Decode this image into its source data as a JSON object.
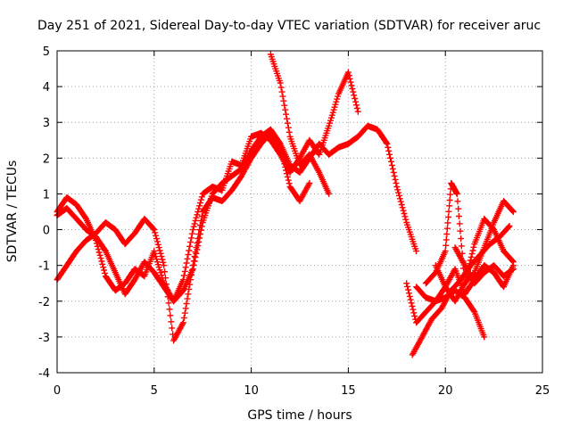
{
  "chart_data": {
    "type": "scatter",
    "title": "Day 251 of 2021, Sidereal Day-to-day VTEC variation (SDTVAR) for receiver aruc",
    "xlabel": "GPS time / hours",
    "ylabel": "SDTVAR / TECUs",
    "xlim": [
      0,
      25
    ],
    "ylim": [
      -4,
      5
    ],
    "xticks": [
      "0",
      "5",
      "10",
      "15",
      "20",
      "25"
    ],
    "yticks": [
      "-4",
      "-3",
      "-2",
      "-1",
      "0",
      "1",
      "2",
      "3",
      "4",
      "5"
    ],
    "grid": true,
    "marker": "+",
    "color": "#ff0000",
    "series": [
      {
        "name": "trace-1",
        "x": [
          0.0,
          0.5,
          1.0,
          1.5,
          2.0,
          2.5,
          3.0,
          3.5,
          4.0,
          4.5,
          5.0,
          5.5,
          6.0,
          6.5,
          7.0,
          7.5,
          8.0,
          8.5,
          9.0,
          9.5,
          10.0,
          10.5,
          11.0,
          11.5,
          12.0,
          12.5,
          13.0,
          13.5,
          14.0,
          14.5,
          15.0,
          15.5,
          16.0,
          16.5,
          17.0,
          17.5,
          18.0,
          18.5
        ],
        "y": [
          0.4,
          0.6,
          0.3,
          0.0,
          -0.2,
          -0.6,
          -1.2,
          -1.8,
          -1.4,
          -0.9,
          -1.2,
          -1.6,
          -2.0,
          -1.7,
          -1.1,
          0.2,
          1.0,
          1.3,
          1.5,
          1.7,
          2.2,
          2.6,
          2.8,
          2.4,
          1.8,
          1.6,
          2.0,
          2.4,
          2.1,
          2.3,
          2.4,
          2.6,
          2.9,
          2.8,
          2.4,
          1.2,
          0.2,
          -0.6
        ]
      },
      {
        "name": "trace-2",
        "x": [
          0.0,
          0.5,
          1.0,
          1.5,
          2.0,
          2.5,
          3.0,
          3.5,
          4.0,
          4.5,
          5.0,
          5.5,
          6.0,
          6.5,
          7.0,
          7.5,
          8.0,
          8.5,
          9.0,
          9.5,
          10.0,
          10.5,
          11.0,
          11.5,
          12.0,
          12.5,
          13.0
        ],
        "y": [
          -1.4,
          -1.0,
          -0.6,
          -0.3,
          -0.1,
          0.2,
          0.0,
          -0.4,
          -0.1,
          0.3,
          0.0,
          -1.0,
          -3.1,
          -2.6,
          -1.0,
          0.5,
          0.9,
          0.8,
          1.1,
          1.5,
          2.0,
          2.4,
          2.7,
          2.3,
          1.2,
          0.8,
          1.3
        ]
      },
      {
        "name": "trace-3",
        "x": [
          0.0,
          0.5,
          1.0,
          1.5,
          2.0,
          2.5,
          3.0,
          3.5,
          4.0,
          4.5,
          5.0,
          5.5,
          6.0,
          6.5,
          7.0,
          7.5,
          8.0,
          8.5,
          9.0,
          9.5,
          10.0,
          10.5,
          11.0,
          11.5,
          12.0,
          12.5,
          13.0,
          13.5,
          14.0,
          14.5,
          15.0,
          15.5
        ],
        "y": [
          0.5,
          0.9,
          0.7,
          0.3,
          -0.3,
          -1.3,
          -1.7,
          -1.5,
          -1.1,
          -1.3,
          -0.6,
          -1.5,
          -2.0,
          -1.4,
          0.0,
          1.0,
          1.2,
          1.1,
          1.9,
          1.8,
          2.6,
          2.7,
          2.5,
          2.1,
          1.6,
          2.0,
          2.5,
          2.1,
          2.9,
          3.8,
          4.4,
          3.3
        ]
      },
      {
        "name": "trace-4",
        "x": [
          11.0,
          11.5,
          12.0,
          12.5,
          13.0,
          13.5,
          14.0
        ],
        "y": [
          4.9,
          4.1,
          2.6,
          1.8,
          2.1,
          1.6,
          1.0
        ]
      },
      {
        "name": "trace-5",
        "x": [
          18.3,
          18.8,
          19.3,
          19.8,
          20.3,
          20.8,
          21.3,
          21.8,
          22.3,
          22.8,
          23.3
        ],
        "y": [
          -3.5,
          -3.0,
          -2.5,
          -2.2,
          -1.7,
          -1.4,
          -1.0,
          -0.7,
          -0.4,
          -0.2,
          0.1
        ]
      },
      {
        "name": "trace-6",
        "x": [
          18.0,
          18.5,
          19.0,
          19.5,
          20.0,
          20.5,
          21.0,
          21.5,
          22.0
        ],
        "y": [
          -1.5,
          -2.6,
          -2.3,
          -2.0,
          -1.9,
          -1.7,
          -1.9,
          -2.3,
          -3.0
        ]
      },
      {
        "name": "trace-7",
        "x": [
          19.0,
          19.5,
          20.0,
          20.3,
          20.6,
          21.0,
          21.5,
          22.0,
          22.5,
          23.0,
          23.5
        ],
        "y": [
          -1.5,
          -1.2,
          -0.6,
          1.3,
          1.0,
          -1.5,
          -1.2,
          -0.5,
          0.2,
          0.8,
          0.5
        ]
      },
      {
        "name": "trace-8",
        "x": [
          18.5,
          19.0,
          19.5,
          20.0,
          20.5,
          21.0,
          21.5,
          22.0,
          22.5,
          23.0,
          23.5
        ],
        "y": [
          -1.6,
          -1.9,
          -2.0,
          -1.6,
          -1.1,
          -1.8,
          -1.4,
          -1.0,
          -1.2,
          -1.6,
          -1.0
        ]
      },
      {
        "name": "trace-9",
        "x": [
          19.5,
          20.0,
          20.5,
          21.0,
          21.5,
          22.0,
          22.5,
          23.0,
          23.5
        ],
        "y": [
          -1.0,
          -1.6,
          -2.0,
          -1.5,
          -0.4,
          0.3,
          0.0,
          -0.6,
          -0.9
        ]
      },
      {
        "name": "trace-10",
        "x": [
          20.5,
          21.0,
          21.5,
          22.0,
          22.5,
          23.0,
          23.5
        ],
        "y": [
          -0.5,
          -1.0,
          -1.5,
          -1.2,
          -1.0,
          -1.3,
          -1.1
        ]
      }
    ]
  }
}
